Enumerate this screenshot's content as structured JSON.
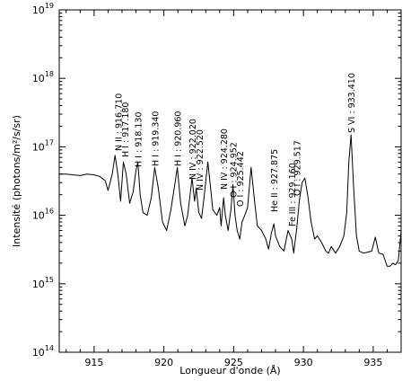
{
  "chart_data": {
    "type": "line",
    "xlabel": "Longueur d'onde (Å)",
    "ylabel": "Intensité (photons/m²/s/sr)",
    "xlim": [
      912.5,
      937
    ],
    "ylim_log10": [
      14,
      19
    ],
    "y_scale": "log",
    "x_ticks": [
      915,
      920,
      925,
      930,
      935
    ],
    "x_tick_labels": [
      "915",
      "920",
      "925",
      "930",
      "935"
    ],
    "y_ticks": [
      100000000000000.0,
      1000000000000000.0,
      1e+16,
      1e+17,
      1e+18,
      1e+19
    ],
    "y_tick_labels": [
      {
        "base": "10",
        "exp": "14"
      },
      {
        "base": "10",
        "exp": "15"
      },
      {
        "base": "10",
        "exp": "16"
      },
      {
        "base": "10",
        "exp": "17"
      },
      {
        "base": "10",
        "exp": "18"
      },
      {
        "base": "10",
        "exp": "19"
      }
    ],
    "series": [
      {
        "x": [
          912.5,
          913.0,
          913.5,
          914.0,
          914.5,
          915.0,
          915.4,
          915.8,
          916.0,
          916.3,
          916.5,
          916.7,
          916.9,
          917.1,
          917.3,
          917.55,
          917.8,
          918.0,
          918.13,
          918.3,
          918.5,
          918.8,
          919.1,
          919.34,
          919.6,
          919.9,
          920.2,
          920.5,
          920.8,
          920.96,
          921.2,
          921.5,
          921.7,
          921.9,
          922.02,
          922.2,
          922.32,
          922.5,
          922.7,
          922.9,
          923.15,
          923.35,
          923.5,
          923.8,
          924.0,
          924.1,
          924.28,
          924.4,
          924.6,
          924.8,
          924.95,
          925.1,
          925.25,
          925.44,
          925.6,
          925.8,
          926.0,
          926.25,
          926.5,
          926.7,
          927.0,
          927.3,
          927.5,
          927.7,
          927.88,
          928.0,
          928.3,
          928.6,
          928.9,
          929.16,
          929.3,
          929.52,
          929.7,
          929.9,
          930.1,
          930.3,
          930.55,
          930.8,
          931.0,
          931.3,
          931.6,
          931.8,
          932.0,
          932.3,
          932.6,
          932.9,
          933.1,
          933.25,
          933.41,
          933.6,
          933.8,
          934.0,
          934.3,
          934.6,
          934.9,
          935.15,
          935.4,
          935.7,
          936.0,
          936.2,
          936.4,
          936.6,
          936.8,
          937.0
        ],
        "y": [
          4e+16,
          4e+16,
          3.9e+16,
          3.8e+16,
          4e+16,
          3.9e+16,
          3.7e+16,
          3.2e+16,
          2.3e+16,
          4e+16,
          7.5e+16,
          4e+16,
          1.6e+16,
          6e+16,
          4e+16,
          1.5e+16,
          2.2e+16,
          4.5e+16,
          6e+16,
          2e+16,
          1.1e+16,
          1e+16,
          1.8e+16,
          5e+16,
          2.5e+16,
          8000000000000000.0,
          6000000000000000.0,
          1.2e+16,
          3e+16,
          5e+16,
          1.5e+16,
          7000000000000000.0,
          1e+16,
          2.2e+16,
          3.5e+16,
          1.6e+16,
          2.5e+16,
          1.1e+16,
          9000000000000000.0,
          2e+16,
          6e+16,
          2.5e+16,
          1.2e+16,
          1e+16,
          1.3e+16,
          7000000000000000.0,
          1.8e+16,
          1e+16,
          6000000000000000.0,
          1.2e+16,
          2.8e+16,
          1e+16,
          6000000000000000.0,
          4500000000000000.0,
          8000000000000000.0,
          1e+16,
          1.3e+16,
          5e+16,
          1.6e+16,
          7000000000000000.0,
          6000000000000000.0,
          4500000000000000.0,
          3200000000000000.0,
          5500000000000000.0,
          7500000000000000.0,
          5000000000000000.0,
          3500000000000000.0,
          3000000000000000.0,
          6000000000000000.0,
          4500000000000000.0,
          2800000000000000.0,
          6500000000000000.0,
          1.6e+16,
          3e+16,
          3.5e+16,
          2e+16,
          8000000000000000.0,
          4500000000000000.0,
          5000000000000000.0,
          4000000000000000.0,
          3000000000000000.0,
          2800000000000000.0,
          3500000000000000.0,
          2800000000000000.0,
          3500000000000000.0,
          5000000000000000.0,
          1.1e+16,
          6e+16,
          1.5e+17,
          2.5e+16,
          5000000000000000.0,
          3000000000000000.0,
          2800000000000000.0,
          2900000000000000.0,
          3000000000000000.0,
          4800000000000000.0,
          2800000000000000.0,
          2700000000000000.0,
          1800000000000000.0,
          1800000000000000.0,
          2000000000000000.0,
          1900000000000000.0,
          2200000000000000.0,
          6000000000000000.0
        ]
      }
    ],
    "annotations": [
      {
        "text": "H I : 917.180",
        "x": 917.18
      },
      {
        "text": "N II : 916.710",
        "x": 916.71
      },
      {
        "text": "H I : 918.130",
        "x": 918.13
      },
      {
        "text": "H I : 919.340",
        "x": 919.34
      },
      {
        "text": "H I : 920.960",
        "x": 920.96
      },
      {
        "text": "N IV : 922.020",
        "x": 922.02
      },
      {
        "text": "N IV : 922.520",
        "x": 922.52
      },
      {
        "text": "N IV : 924.280",
        "x": 924.28
      },
      {
        "text": "O I : 924.952",
        "x": 924.95
      },
      {
        "text": "O I : 925.442",
        "x": 925.44
      },
      {
        "text": "He II : 927.875",
        "x": 927.88
      },
      {
        "text": "Fe III : 929.160",
        "x": 929.16
      },
      {
        "text": "O I : 929.517",
        "x": 929.52
      },
      {
        "text": "S VI : 933.410",
        "x": 933.41
      }
    ]
  }
}
